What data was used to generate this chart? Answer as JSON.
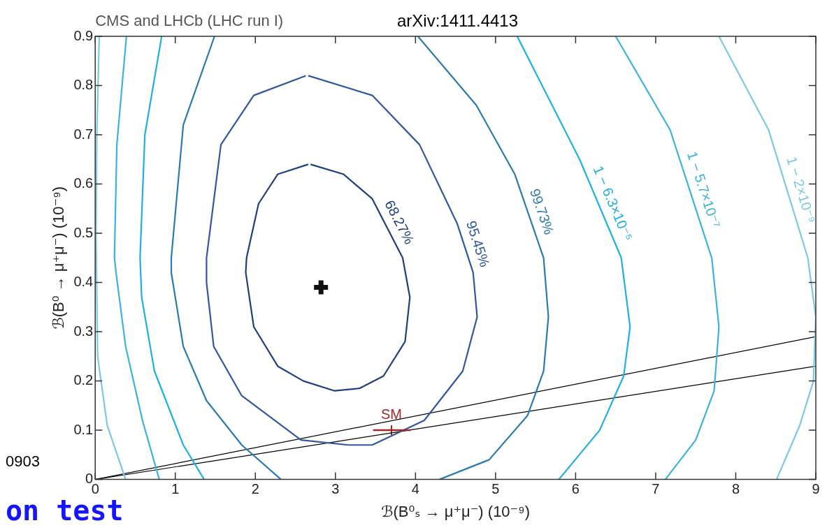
{
  "chart_data": {
    "type": "line",
    "title": "CMS and LHCb (LHC run I)",
    "xlabel": "ℬ(B⁰ₛ → μ⁺μ⁻) (10⁻⁹)",
    "ylabel": "ℬ(B⁰ → μ⁺μ⁻) (10⁻⁹)",
    "annotations": [
      "arXiv:1411.4413",
      "0903",
      "on test"
    ],
    "xlim": [
      0,
      9
    ],
    "xticks": [
      0,
      1,
      2,
      3,
      4,
      5,
      6,
      7,
      8,
      9
    ],
    "ylim": [
      0,
      0.9
    ],
    "yticks": [
      0,
      0.1,
      0.2,
      0.3,
      0.4,
      0.5,
      0.6,
      0.7,
      0.8,
      0.9
    ],
    "grid": false,
    "legend": false,
    "marker": "none",
    "series": [
      {
        "name": "68.27%",
        "color": "#1f3f80",
        "x": [
          2.69,
          3.1,
          3.46,
          3.84,
          3.93,
          3.87,
          3.6,
          3.3,
          2.99,
          2.6,
          2.28,
          1.98,
          1.88,
          1.89,
          2.04,
          2.28,
          2.66
        ],
        "values": [
          0.64,
          0.62,
          0.57,
          0.45,
          0.37,
          0.28,
          0.21,
          0.185,
          0.18,
          0.2,
          0.23,
          0.31,
          0.42,
          0.45,
          0.56,
          0.62,
          0.64
        ]
      },
      {
        "name": "95.45%",
        "color": "#2f58a0",
        "x": [
          2.66,
          3.46,
          4.05,
          4.52,
          4.72,
          4.77,
          4.59,
          4.11,
          3.46,
          3.16,
          2.57,
          1.83,
          1.48,
          1.39,
          1.39,
          1.57,
          1.98,
          2.63
        ],
        "values": [
          0.82,
          0.78,
          0.68,
          0.52,
          0.42,
          0.33,
          0.22,
          0.12,
          0.07,
          0.07,
          0.08,
          0.17,
          0.27,
          0.4,
          0.45,
          0.68,
          0.78,
          0.82
        ]
      },
      {
        "name": "99.73%",
        "color": "#2a7ab2",
        "x": [
          1.49,
          1.1,
          0.95,
          0.95,
          1.1,
          1.39,
          1.83,
          2.32,
          null,
          4.3,
          4.92,
          5.4,
          5.6,
          5.66,
          5.6,
          5.24,
          4.76,
          4.03
        ],
        "values": [
          0.9,
          0.72,
          0.45,
          0.42,
          0.27,
          0.16,
          0.07,
          0,
          null,
          0,
          0.04,
          0.13,
          0.22,
          0.33,
          0.45,
          0.62,
          0.76,
          0.9
        ]
      },
      {
        "name": "1 − 6.3×10⁻⁵",
        "color": "#1eb0e2",
        "x": [
          0.83,
          0.62,
          0.56,
          0.58,
          0.74,
          1.1,
          1.36,
          null,
          5.79,
          6.3,
          6.6,
          6.68,
          6.57,
          6.05,
          5.27
        ],
        "values": [
          0.9,
          0.7,
          0.45,
          0.37,
          0.22,
          0.07,
          0,
          null,
          0,
          0.1,
          0.21,
          0.31,
          0.45,
          0.65,
          0.9
        ]
      },
      {
        "name": "1 − 5.7×10⁻⁷",
        "color": "#3cb2de",
        "x": [
          0.39,
          0.27,
          0.24,
          0.26,
          0.38,
          0.59,
          0.8,
          null,
          7.12,
          7.5,
          7.73,
          7.79,
          7.7,
          7.18,
          6.5
        ],
        "values": [
          0.9,
          0.68,
          0.45,
          0.42,
          0.27,
          0.12,
          0,
          null,
          0,
          0.08,
          0.18,
          0.31,
          0.45,
          0.71,
          0.9
        ]
      },
      {
        "name": "1 − 2×10⁻⁹",
        "color": "#7cc8e6",
        "x": [
          0.05,
          0.02,
          0.01,
          0.03,
          0.15,
          0.38,
          null,
          8.51,
          8.8,
          8.97,
          9,
          8.9,
          8.41,
          7.79
        ],
        "values": [
          0.9,
          0.7,
          0.5,
          0.25,
          0.11,
          0,
          null,
          0,
          0.11,
          0.2,
          0.33,
          0.45,
          0.71,
          0.9
        ]
      },
      {
        "color": "#000000",
        "x": [
          0,
          9
        ],
        "values": [
          0,
          0.29
        ]
      },
      {
        "color": "#000000",
        "x": [
          0,
          9
        ],
        "values": [
          0,
          0.23
        ]
      },
      {
        "type": "scatter",
        "marker": "cross",
        "color": "#111111",
        "x": [
          2.82
        ],
        "values": [
          0.39
        ]
      },
      {
        "type": "scatter",
        "marker": "cross",
        "name": "SM",
        "color": "#a02828",
        "x": [
          3.7
        ],
        "values": [
          0.1
        ],
        "xerrors": [
          [
            3.47,
            3.94
          ]
        ]
      }
    ]
  }
}
